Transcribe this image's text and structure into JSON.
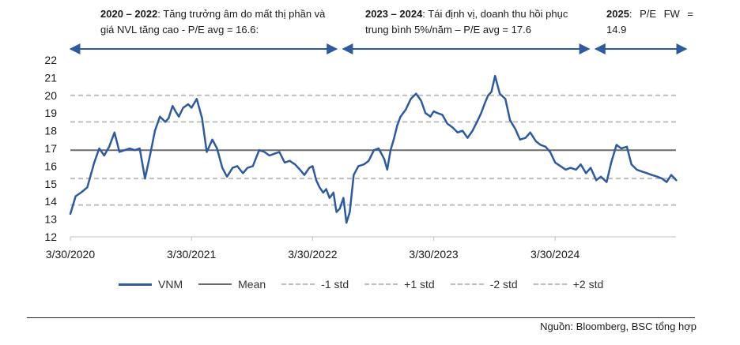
{
  "annotations": [
    {
      "bold": "2020 – 2022",
      "text": ": Tăng trưởng âm do mất thị phần và giá NVL tăng cao - P/E avg = 16.6:"
    },
    {
      "bold": "2023 – 2024",
      "text": ": Tái định vị, doanh thu hồi phục trung bình 5%/năm – P/E avg = 17.6"
    },
    {
      "bold": "2025",
      "text": ": P/E FW = 14.9"
    }
  ],
  "source": "Nguồn: Bloomberg, BSC tổng hợp",
  "colors": {
    "series": "#2d5aa0",
    "mean": "#6b6b6b",
    "std": "#bfbfbf",
    "arrow": "#2d5aa0"
  },
  "chart_data": {
    "type": "line",
    "title": "",
    "xlabel": "",
    "ylabel": "",
    "ylim": [
      12,
      22
    ],
    "yticks": [
      "12",
      "13",
      "14",
      "15",
      "16",
      "17",
      "18",
      "19",
      "20",
      "21",
      "22"
    ],
    "xticks": [
      "3/30/2020",
      "3/30/2021",
      "3/30/2022",
      "3/30/2023",
      "3/30/2024"
    ],
    "grid": false,
    "legend_position": "bottom",
    "series": [
      {
        "name": "VNM",
        "style": "solid",
        "x": [
          "2020-03-30",
          "2020-04-15",
          "2020-05-01",
          "2020-05-20",
          "2020-06-10",
          "2020-06-25",
          "2020-07-10",
          "2020-07-25",
          "2020-08-10",
          "2020-08-25",
          "2020-09-10",
          "2020-09-25",
          "2020-10-10",
          "2020-10-25",
          "2020-11-10",
          "2020-11-25",
          "2020-12-10",
          "2020-12-25",
          "2021-01-10",
          "2021-01-20",
          "2021-02-01",
          "2021-02-10",
          "2021-02-20",
          "2021-03-05",
          "2021-03-20",
          "2021-03-30",
          "2021-04-15",
          "2021-05-01",
          "2021-05-15",
          "2021-06-01",
          "2021-06-15",
          "2021-07-01",
          "2021-07-15",
          "2021-08-01",
          "2021-08-15",
          "2021-09-01",
          "2021-09-15",
          "2021-10-01",
          "2021-10-20",
          "2021-11-05",
          "2021-11-20",
          "2021-12-05",
          "2021-12-20",
          "2022-01-05",
          "2022-01-20",
          "2022-02-05",
          "2022-02-20",
          "2022-03-05",
          "2022-03-20",
          "2022-03-30",
          "2022-04-10",
          "2022-04-20",
          "2022-05-01",
          "2022-05-10",
          "2022-05-20",
          "2022-06-01",
          "2022-06-10",
          "2022-06-20",
          "2022-07-01",
          "2022-07-10",
          "2022-07-20",
          "2022-08-01",
          "2022-08-15",
          "2022-09-01",
          "2022-09-15",
          "2022-10-01",
          "2022-10-15",
          "2022-11-01",
          "2022-11-10",
          "2022-11-20",
          "2022-12-01",
          "2022-12-10",
          "2022-12-20",
          "2023-01-05",
          "2023-01-20",
          "2023-02-05",
          "2023-02-20",
          "2023-03-05",
          "2023-03-20",
          "2023-03-30",
          "2023-04-10",
          "2023-04-25",
          "2023-05-10",
          "2023-05-25",
          "2023-06-10",
          "2023-06-25",
          "2023-07-10",
          "2023-07-25",
          "2023-08-10",
          "2023-08-20",
          "2023-09-01",
          "2023-09-10",
          "2023-09-20",
          "2023-10-01",
          "2023-10-15",
          "2023-11-01",
          "2023-11-15",
          "2023-12-01",
          "2023-12-15",
          "2024-01-01",
          "2024-01-15",
          "2024-02-01",
          "2024-02-15",
          "2024-03-01",
          "2024-03-15",
          "2024-03-30",
          "2024-04-15",
          "2024-05-01",
          "2024-05-15",
          "2024-06-01",
          "2024-06-15",
          "2024-07-01",
          "2024-07-15",
          "2024-08-01",
          "2024-08-15",
          "2024-09-01",
          "2024-09-15",
          "2024-10-01",
          "2024-10-15",
          "2024-11-01",
          "2024-11-15",
          "2024-12-01",
          "2024-12-15",
          "2025-01-01",
          "2025-01-15",
          "2025-02-01",
          "2025-02-15",
          "2025-03-01",
          "2025-03-15",
          "2025-03-30"
        ],
        "values": [
          13.3,
          14.3,
          14.5,
          14.8,
          16.2,
          17.0,
          16.6,
          17.1,
          17.9,
          16.8,
          16.9,
          17.0,
          16.9,
          17.0,
          15.3,
          16.6,
          18.0,
          18.8,
          18.5,
          18.7,
          19.4,
          19.1,
          18.8,
          19.3,
          19.5,
          19.3,
          19.8,
          18.7,
          16.8,
          17.5,
          17.0,
          15.9,
          15.4,
          15.9,
          16.0,
          15.6,
          15.9,
          16.0,
          16.9,
          16.8,
          16.6,
          16.7,
          16.8,
          16.2,
          16.3,
          16.1,
          15.8,
          15.5,
          15.9,
          16.0,
          15.2,
          14.8,
          14.5,
          14.7,
          14.2,
          14.5,
          13.4,
          13.6,
          14.2,
          12.8,
          13.4,
          15.5,
          16.0,
          16.1,
          16.3,
          16.9,
          17.0,
          16.4,
          15.8,
          16.9,
          17.6,
          18.3,
          18.8,
          19.2,
          19.8,
          20.1,
          19.7,
          19.0,
          18.8,
          19.1,
          19.0,
          18.9,
          18.4,
          18.2,
          17.9,
          18.0,
          17.6,
          18.0,
          18.6,
          19.0,
          19.6,
          20.0,
          20.2,
          21.1,
          20.1,
          19.8,
          18.6,
          18.1,
          17.5,
          17.6,
          17.9,
          17.4,
          17.2,
          17.1,
          16.8,
          16.2,
          16.0,
          15.8,
          15.9,
          15.8,
          16.1,
          15.6,
          15.9,
          15.2,
          15.4,
          15.1,
          16.2,
          17.2,
          17.0,
          17.1,
          16.1,
          15.8,
          15.7,
          15.6,
          15.5,
          15.4,
          15.3,
          15.1,
          15.5,
          15.2
        ]
      },
      {
        "name": "Mean",
        "style": "solid",
        "values": [
          16.9
        ]
      },
      {
        "name": "-1 std",
        "style": "dashed",
        "values": [
          15.3
        ]
      },
      {
        "name": "+1 std",
        "style": "dashed",
        "values": [
          18.5
        ]
      },
      {
        "name": "-2 std",
        "style": "dashed",
        "values": [
          13.8
        ]
      },
      {
        "name": "+2 std",
        "style": "dashed",
        "values": [
          20.0
        ]
      }
    ],
    "period_arrows": [
      {
        "start": "2020-03-30",
        "end": "2022-06-20"
      },
      {
        "start": "2022-06-20",
        "end": "2024-07-20"
      },
      {
        "start": "2024-07-20",
        "end": "2025-03-30"
      }
    ]
  }
}
